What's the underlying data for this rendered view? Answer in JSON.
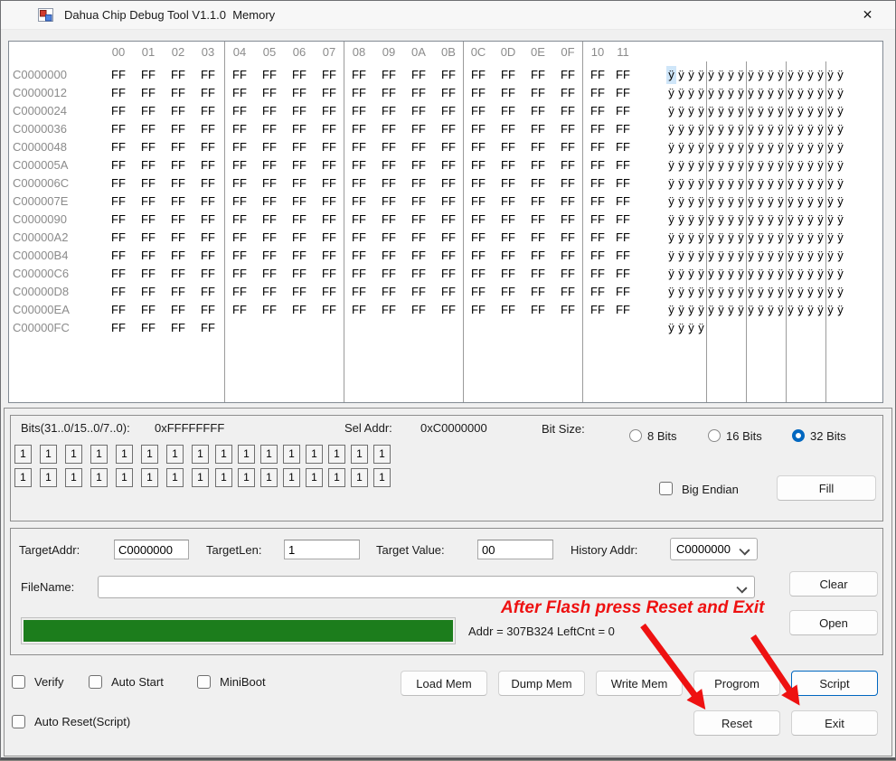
{
  "window": {
    "title": "Dahua Chip Debug Tool V1.1.0  Memory",
    "close_glyph": "✕"
  },
  "memory": {
    "col_headers": [
      "00",
      "01",
      "02",
      "03",
      "04",
      "05",
      "06",
      "07",
      "08",
      "09",
      "0A",
      "0B",
      "0C",
      "0D",
      "0E",
      "0F",
      "10",
      "11"
    ],
    "selection": {
      "row": 0,
      "col": 0
    },
    "rows": [
      {
        "addr": "C0000000",
        "bytes": [
          "FF",
          "FF",
          "FF",
          "FF",
          "FF",
          "FF",
          "FF",
          "FF",
          "FF",
          "FF",
          "FF",
          "FF",
          "FF",
          "FF",
          "FF",
          "FF",
          "FF",
          "FF"
        ],
        "ascii": "ÿÿÿÿÿÿÿÿÿÿÿÿÿÿÿÿÿÿ"
      },
      {
        "addr": "C0000012",
        "bytes": [
          "FF",
          "FF",
          "FF",
          "FF",
          "FF",
          "FF",
          "FF",
          "FF",
          "FF",
          "FF",
          "FF",
          "FF",
          "FF",
          "FF",
          "FF",
          "FF",
          "FF",
          "FF"
        ],
        "ascii": "ÿÿÿÿÿÿÿÿÿÿÿÿÿÿÿÿÿÿ"
      },
      {
        "addr": "C0000024",
        "bytes": [
          "FF",
          "FF",
          "FF",
          "FF",
          "FF",
          "FF",
          "FF",
          "FF",
          "FF",
          "FF",
          "FF",
          "FF",
          "FF",
          "FF",
          "FF",
          "FF",
          "FF",
          "FF"
        ],
        "ascii": "ÿÿÿÿÿÿÿÿÿÿÿÿÿÿÿÿÿÿ"
      },
      {
        "addr": "C0000036",
        "bytes": [
          "FF",
          "FF",
          "FF",
          "FF",
          "FF",
          "FF",
          "FF",
          "FF",
          "FF",
          "FF",
          "FF",
          "FF",
          "FF",
          "FF",
          "FF",
          "FF",
          "FF",
          "FF"
        ],
        "ascii": "ÿÿÿÿÿÿÿÿÿÿÿÿÿÿÿÿÿÿ"
      },
      {
        "addr": "C0000048",
        "bytes": [
          "FF",
          "FF",
          "FF",
          "FF",
          "FF",
          "FF",
          "FF",
          "FF",
          "FF",
          "FF",
          "FF",
          "FF",
          "FF",
          "FF",
          "FF",
          "FF",
          "FF",
          "FF"
        ],
        "ascii": "ÿÿÿÿÿÿÿÿÿÿÿÿÿÿÿÿÿÿ"
      },
      {
        "addr": "C000005A",
        "bytes": [
          "FF",
          "FF",
          "FF",
          "FF",
          "FF",
          "FF",
          "FF",
          "FF",
          "FF",
          "FF",
          "FF",
          "FF",
          "FF",
          "FF",
          "FF",
          "FF",
          "FF",
          "FF"
        ],
        "ascii": "ÿÿÿÿÿÿÿÿÿÿÿÿÿÿÿÿÿÿ"
      },
      {
        "addr": "C000006C",
        "bytes": [
          "FF",
          "FF",
          "FF",
          "FF",
          "FF",
          "FF",
          "FF",
          "FF",
          "FF",
          "FF",
          "FF",
          "FF",
          "FF",
          "FF",
          "FF",
          "FF",
          "FF",
          "FF"
        ],
        "ascii": "ÿÿÿÿÿÿÿÿÿÿÿÿÿÿÿÿÿÿ"
      },
      {
        "addr": "C000007E",
        "bytes": [
          "FF",
          "FF",
          "FF",
          "FF",
          "FF",
          "FF",
          "FF",
          "FF",
          "FF",
          "FF",
          "FF",
          "FF",
          "FF",
          "FF",
          "FF",
          "FF",
          "FF",
          "FF"
        ],
        "ascii": "ÿÿÿÿÿÿÿÿÿÿÿÿÿÿÿÿÿÿ"
      },
      {
        "addr": "C0000090",
        "bytes": [
          "FF",
          "FF",
          "FF",
          "FF",
          "FF",
          "FF",
          "FF",
          "FF",
          "FF",
          "FF",
          "FF",
          "FF",
          "FF",
          "FF",
          "FF",
          "FF",
          "FF",
          "FF"
        ],
        "ascii": "ÿÿÿÿÿÿÿÿÿÿÿÿÿÿÿÿÿÿ"
      },
      {
        "addr": "C00000A2",
        "bytes": [
          "FF",
          "FF",
          "FF",
          "FF",
          "FF",
          "FF",
          "FF",
          "FF",
          "FF",
          "FF",
          "FF",
          "FF",
          "FF",
          "FF",
          "FF",
          "FF",
          "FF",
          "FF"
        ],
        "ascii": "ÿÿÿÿÿÿÿÿÿÿÿÿÿÿÿÿÿÿ"
      },
      {
        "addr": "C00000B4",
        "bytes": [
          "FF",
          "FF",
          "FF",
          "FF",
          "FF",
          "FF",
          "FF",
          "FF",
          "FF",
          "FF",
          "FF",
          "FF",
          "FF",
          "FF",
          "FF",
          "FF",
          "FF",
          "FF"
        ],
        "ascii": "ÿÿÿÿÿÿÿÿÿÿÿÿÿÿÿÿÿÿ"
      },
      {
        "addr": "C00000C6",
        "bytes": [
          "FF",
          "FF",
          "FF",
          "FF",
          "FF",
          "FF",
          "FF",
          "FF",
          "FF",
          "FF",
          "FF",
          "FF",
          "FF",
          "FF",
          "FF",
          "FF",
          "FF",
          "FF"
        ],
        "ascii": "ÿÿÿÿÿÿÿÿÿÿÿÿÿÿÿÿÿÿ"
      },
      {
        "addr": "C00000D8",
        "bytes": [
          "FF",
          "FF",
          "FF",
          "FF",
          "FF",
          "FF",
          "FF",
          "FF",
          "FF",
          "FF",
          "FF",
          "FF",
          "FF",
          "FF",
          "FF",
          "FF",
          "FF",
          "FF"
        ],
        "ascii": "ÿÿÿÿÿÿÿÿÿÿÿÿÿÿÿÿÿÿ"
      },
      {
        "addr": "C00000EA",
        "bytes": [
          "FF",
          "FF",
          "FF",
          "FF",
          "FF",
          "FF",
          "FF",
          "FF",
          "FF",
          "FF",
          "FF",
          "FF",
          "FF",
          "FF",
          "FF",
          "FF",
          "FF",
          "FF"
        ],
        "ascii": "ÿÿÿÿÿÿÿÿÿÿÿÿÿÿÿÿÿÿ"
      },
      {
        "addr": "C00000FC",
        "bytes": [
          "FF",
          "FF",
          "FF",
          "FF"
        ],
        "ascii": "ÿÿÿÿ"
      }
    ]
  },
  "bits": {
    "label": "Bits(31..0/15..0/7..0):",
    "value": "0xFFFFFFFF",
    "sel_addr_label": "Sel Addr:",
    "sel_addr_value": "0xC0000000",
    "size_label": "Bit Size:",
    "size_options": [
      {
        "label": "8 Bits",
        "selected": false
      },
      {
        "label": "16 Bits",
        "selected": false
      },
      {
        "label": "32 Bits",
        "selected": true
      }
    ],
    "bit_cells": [
      "1",
      "1",
      "1",
      "1",
      "1",
      "1",
      "1",
      "1",
      "1",
      "1",
      "1",
      "1",
      "1",
      "1",
      "1",
      "1",
      "1",
      "1",
      "1",
      "1",
      "1",
      "1",
      "1",
      "1",
      "1",
      "1",
      "1",
      "1",
      "1",
      "1",
      "1",
      "1"
    ],
    "big_endian": {
      "label": "Big Endian",
      "checked": false
    },
    "fill_button": "Fill"
  },
  "target": {
    "addr_label": "TargetAddr:",
    "addr_value": "C0000000",
    "len_label": "TargetLen:",
    "len_value": "1",
    "value_label": "Target Value:",
    "value_value": "00",
    "history_label": "History Addr:",
    "history_value": "C0000000",
    "filename_label": "FileName:",
    "filename_value": "",
    "clear_button": "Clear",
    "open_button": "Open",
    "progress": {
      "percent": 100
    },
    "status_text": "Addr = 307B324 LeftCnt = 0",
    "annotation": "After Flash press Reset and Exit"
  },
  "actions": {
    "checkboxes": [
      {
        "label": "Verify",
        "checked": false
      },
      {
        "label": "Auto Start",
        "checked": false
      },
      {
        "label": "MiniBoot",
        "checked": false
      },
      {
        "label": "Auto Reset(Script)",
        "checked": false
      }
    ],
    "buttons_row1": [
      "Load Mem",
      "Dump Mem",
      "Write Mem",
      "Progrom",
      "Script"
    ],
    "buttons_row2": [
      "Reset",
      "Exit"
    ],
    "highlighted_button": "Script"
  },
  "colors": {
    "accent": "#0067c0",
    "progress_green": "#1c7d1c",
    "annotation_red": "#ee1111",
    "selection": "#cfe6f9"
  }
}
